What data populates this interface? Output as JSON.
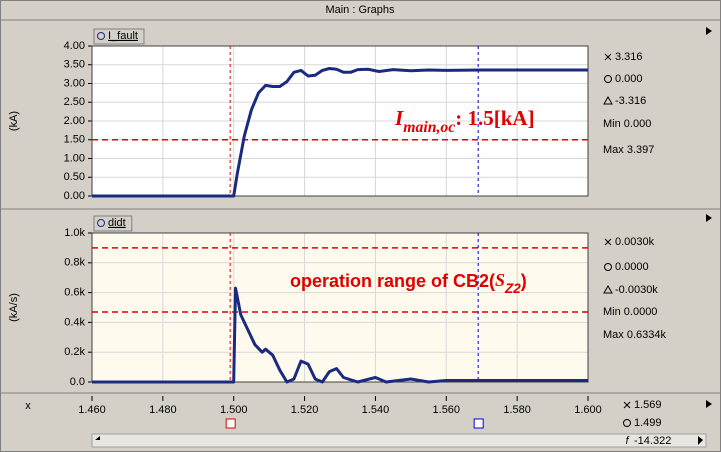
{
  "window_title": "Main : Graphs",
  "x_axis": {
    "label": "x",
    "xlim": [
      1.46,
      1.6
    ],
    "xticks": [
      {
        "value": 1.46,
        "label": "1.460"
      },
      {
        "value": 1.48,
        "label": "1.480"
      },
      {
        "value": 1.5,
        "label": "1.500"
      },
      {
        "value": 1.52,
        "label": "1.520"
      },
      {
        "value": 1.54,
        "label": "1.540"
      },
      {
        "value": 1.56,
        "label": "1.560"
      },
      {
        "value": 1.58,
        "label": "1.580"
      },
      {
        "value": 1.6,
        "label": "1.600"
      }
    ],
    "cursors": [
      {
        "value": 1.569,
        "label": "1.569",
        "color": "#0000dd"
      },
      {
        "value": 1.499,
        "label": "1.499",
        "color": "#dd0000"
      }
    ],
    "slope": {
      "symbol": "f",
      "value": "-14.322"
    }
  },
  "chart_data": [
    {
      "type": "line",
      "ylabel": "(kA)",
      "ylim": [
        0,
        4
      ],
      "yticks": [
        {
          "value": 0,
          "label": "0.00"
        },
        {
          "value": 0.5,
          "label": "0.50"
        },
        {
          "value": 1,
          "label": "1.00"
        },
        {
          "value": 1.5,
          "label": "1.50"
        },
        {
          "value": 2,
          "label": "2.00"
        },
        {
          "value": 2.5,
          "label": "2.50"
        },
        {
          "value": 3,
          "label": "3.00"
        },
        {
          "value": 3.5,
          "label": "3.50"
        },
        {
          "value": 4,
          "label": "4.00"
        }
      ],
      "grid": true,
      "background": "#ffffff",
      "x": [
        1.46,
        1.5,
        1.501,
        1.503,
        1.505,
        1.507,
        1.509,
        1.511,
        1.513,
        1.515,
        1.517,
        1.519,
        1.521,
        1.523,
        1.525,
        1.527,
        1.529,
        1.531,
        1.533,
        1.535,
        1.538,
        1.541,
        1.545,
        1.55,
        1.555,
        1.56,
        1.57,
        1.58,
        1.59,
        1.6
      ],
      "series": [
        {
          "name": "I_fault",
          "color": "#1a2a80",
          "values": [
            0,
            0,
            0.6,
            1.6,
            2.3,
            2.75,
            2.95,
            2.92,
            2.92,
            3.05,
            3.3,
            3.35,
            3.2,
            3.22,
            3.35,
            3.4,
            3.38,
            3.3,
            3.3,
            3.37,
            3.38,
            3.32,
            3.37,
            3.34,
            3.36,
            3.35,
            3.36,
            3.36,
            3.36,
            3.36
          ]
        }
      ],
      "hlines": [
        1.5
      ],
      "hline_color": "#e00000",
      "annotation": {
        "main": "I",
        "sub": "main,oc",
        "rest": ": 1.5[kA]"
      },
      "readout": {
        "x": "3.316",
        "o": "0.000",
        "delta": "-3.316",
        "min": "Min 0.000",
        "max": "Max 3.397"
      }
    },
    {
      "type": "line",
      "ylabel": "(kA/s)",
      "ylim": [
        0,
        1
      ],
      "yticks": [
        {
          "value": 0,
          "label": "0.0"
        },
        {
          "value": 0.2,
          "label": "0.2k"
        },
        {
          "value": 0.4,
          "label": "0.4k"
        },
        {
          "value": 0.6,
          "label": "0.6k"
        },
        {
          "value": 0.8,
          "label": "0.8k"
        },
        {
          "value": 1,
          "label": "1.0k"
        }
      ],
      "grid": true,
      "background": "#fffaee",
      "x": [
        1.46,
        1.5,
        1.5005,
        1.502,
        1.504,
        1.506,
        1.508,
        1.509,
        1.511,
        1.513,
        1.515,
        1.517,
        1.519,
        1.521,
        1.523,
        1.525,
        1.527,
        1.529,
        1.531,
        1.535,
        1.54,
        1.543,
        1.55,
        1.555,
        1.56,
        1.6
      ],
      "series": [
        {
          "name": "didt",
          "color": "#1a2a80",
          "values": [
            0,
            0,
            0.63,
            0.45,
            0.35,
            0.25,
            0.2,
            0.22,
            0.18,
            0.08,
            0,
            0.02,
            0.14,
            0.12,
            0.02,
            0,
            0.07,
            0.09,
            0.03,
            0,
            0.03,
            0,
            0.02,
            0,
            0.01,
            0.01
          ]
        }
      ],
      "hlines": [
        0.9,
        0.47
      ],
      "hline_color": "#e00000",
      "annotation": {
        "main": "operation range of CB2(",
        "sym": "S",
        "sub": "Z2",
        "rest": ")"
      },
      "readout": {
        "x": "0.0030k",
        "o": "0.0000",
        "delta": "-0.0030k",
        "min": "Min 0.0000",
        "max": "Max 0.6334k"
      }
    }
  ]
}
